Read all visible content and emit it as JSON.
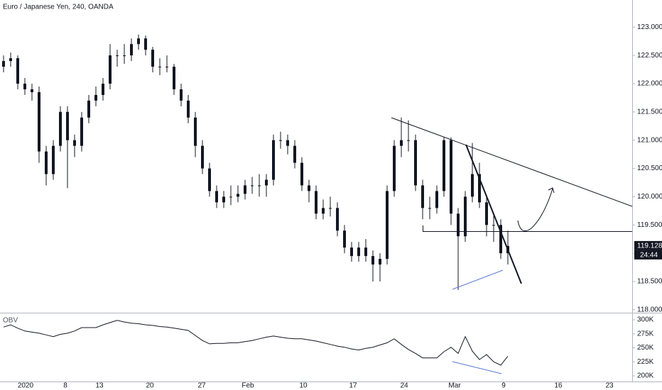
{
  "chart_data": [
    {
      "type": "candlestick",
      "title": "Euro / Japanese Yen, 240, OANDA",
      "color": "#131722",
      "countdown": "24:44",
      "x": [
        0,
        1,
        2,
        3,
        4,
        5,
        6,
        7,
        8,
        9,
        10,
        11,
        12,
        13,
        14,
        15,
        16,
        17,
        18,
        19,
        20,
        21,
        22,
        23,
        24,
        25,
        26,
        27,
        28,
        29,
        30,
        31,
        32,
        33,
        34,
        35,
        36,
        37,
        38,
        39,
        40,
        41,
        42,
        43,
        44,
        45,
        46,
        47,
        48,
        49,
        50,
        51,
        52,
        53,
        54,
        55,
        56,
        57,
        58,
        59,
        60,
        61,
        62,
        63,
        64,
        65,
        66,
        67,
        68,
        69,
        70,
        71
      ],
      "open": [
        122.3,
        122.4,
        122.45,
        122.0,
        121.9,
        121.85,
        120.8,
        120.4,
        120.9,
        121.5,
        121.0,
        120.9,
        121.4,
        121.7,
        121.8,
        122.0,
        122.5,
        122.5,
        122.5,
        122.7,
        122.8,
        122.6,
        122.3,
        122.3,
        122.3,
        121.9,
        121.7,
        121.4,
        120.9,
        120.5,
        120.1,
        119.9,
        120.0,
        120.0,
        120.05,
        120.2,
        120.2,
        120.2,
        120.3,
        121.0,
        121.0,
        120.9,
        120.6,
        120.2,
        120.1,
        119.7,
        119.8,
        119.8,
        119.4,
        119.1,
        118.95,
        119.1,
        118.95,
        118.8,
        118.9,
        120.1,
        120.9,
        121.0,
        121.0,
        120.2,
        119.8,
        119.8,
        120.1,
        121.0,
        119.7,
        119.3,
        120.0,
        120.4,
        119.9,
        119.5,
        119.5,
        119.0
      ],
      "high": [
        122.5,
        122.55,
        122.5,
        122.1,
        122.0,
        121.95,
        120.9,
        121.0,
        121.6,
        121.6,
        121.1,
        121.5,
        121.8,
        121.95,
        122.1,
        122.7,
        122.6,
        122.7,
        122.8,
        122.87,
        122.85,
        122.65,
        122.45,
        122.5,
        122.35,
        122.0,
        121.8,
        121.5,
        121.0,
        120.6,
        120.2,
        120.1,
        120.2,
        120.2,
        120.3,
        120.35,
        120.4,
        120.4,
        121.1,
        121.15,
        121.1,
        121.0,
        120.7,
        120.3,
        120.2,
        119.95,
        120.0,
        119.9,
        119.5,
        119.2,
        119.2,
        119.25,
        119.05,
        119.0,
        120.2,
        121.0,
        121.4,
        121.35,
        121.1,
        120.3,
        120.0,
        120.2,
        121.05,
        121.05,
        119.8,
        120.1,
        120.95,
        120.6,
        120.0,
        119.7,
        119.6,
        119.4
      ],
      "low": [
        122.2,
        122.3,
        121.9,
        121.8,
        121.7,
        120.6,
        120.2,
        120.3,
        120.8,
        120.15,
        120.7,
        120.8,
        121.3,
        121.6,
        121.7,
        121.9,
        122.3,
        122.35,
        122.4,
        122.6,
        122.5,
        122.2,
        122.15,
        122.2,
        121.8,
        121.6,
        121.3,
        120.7,
        120.4,
        120.0,
        119.8,
        119.8,
        119.85,
        119.9,
        119.95,
        120.05,
        120.0,
        120.0,
        120.2,
        120.85,
        120.75,
        120.5,
        120.1,
        119.9,
        119.6,
        119.6,
        119.65,
        119.3,
        119.0,
        118.85,
        118.85,
        118.85,
        118.5,
        118.5,
        118.8,
        120.0,
        120.7,
        120.8,
        120.1,
        119.6,
        119.6,
        119.7,
        120.0,
        119.5,
        118.35,
        119.2,
        119.9,
        119.8,
        119.3,
        119.2,
        118.9,
        118.8
      ],
      "close": [
        122.4,
        122.45,
        122.0,
        121.9,
        121.85,
        120.8,
        120.4,
        120.9,
        121.5,
        121.0,
        120.9,
        121.4,
        121.7,
        121.8,
        122.0,
        122.5,
        122.5,
        122.5,
        122.7,
        122.8,
        122.6,
        122.3,
        122.3,
        122.3,
        121.9,
        121.7,
        121.4,
        120.9,
        120.5,
        120.1,
        119.9,
        120.0,
        120.0,
        120.05,
        120.2,
        120.2,
        120.2,
        120.3,
        121.0,
        121.0,
        120.9,
        120.6,
        120.2,
        120.1,
        119.7,
        119.8,
        119.8,
        119.4,
        119.1,
        118.95,
        119.1,
        118.95,
        118.8,
        118.9,
        120.1,
        120.9,
        121.0,
        121.0,
        120.2,
        119.8,
        119.8,
        120.1,
        121.0,
        119.7,
        119.3,
        120.0,
        120.4,
        119.9,
        119.5,
        119.5,
        119.0,
        119.128
      ],
      "xlim": [
        -0.5,
        88.5
      ],
      "xticks": [
        {
          "value": 3.1,
          "label": "2020"
        },
        {
          "value": 8.7,
          "label": "8"
        },
        {
          "value": 13.5,
          "label": "13"
        },
        {
          "value": 20.6,
          "label": "20"
        },
        {
          "value": 27.9,
          "label": "27"
        },
        {
          "value": 34.4,
          "label": "Feb"
        },
        {
          "value": 42.2,
          "label": "10"
        },
        {
          "value": 49.2,
          "label": "17"
        },
        {
          "value": 56.4,
          "label": "24"
        },
        {
          "value": 63.5,
          "label": "Mar"
        },
        {
          "value": 70.4,
          "label": "9"
        },
        {
          "value": 78.1,
          "label": "16"
        },
        {
          "value": 85.3,
          "label": "23"
        }
      ],
      "ylim": [
        117.96,
        123.48
      ],
      "yticks": [
        {
          "value": 118,
          "label": "118.000"
        },
        {
          "value": 118.5,
          "label": "118.500"
        },
        {
          "value": 119,
          "label": "119.000"
        },
        {
          "value": 119.5,
          "label": "119.500"
        },
        {
          "value": 120,
          "label": "120.000"
        },
        {
          "value": 120.5,
          "label": "120.500"
        },
        {
          "value": 121,
          "label": "121.000"
        },
        {
          "value": 121.5,
          "label": "121.500"
        },
        {
          "value": 122,
          "label": "122.000"
        },
        {
          "value": 122.5,
          "label": "122.500"
        },
        {
          "value": 123,
          "label": "123.000"
        }
      ]
    },
    {
      "type": "line",
      "title": "OBV",
      "color": "#131722",
      "x": [
        0,
        1,
        2,
        3,
        4,
        5,
        6,
        7,
        8,
        9,
        10,
        11,
        12,
        13,
        14,
        15,
        16,
        17,
        18,
        19,
        20,
        21,
        22,
        23,
        24,
        25,
        26,
        27,
        28,
        29,
        30,
        31,
        32,
        33,
        34,
        35,
        36,
        37,
        38,
        39,
        40,
        41,
        42,
        43,
        44,
        45,
        46,
        47,
        48,
        49,
        50,
        51,
        52,
        53,
        54,
        55,
        56,
        57,
        58,
        59,
        60,
        61,
        62,
        63,
        64,
        65,
        66,
        67,
        68,
        69,
        70,
        71
      ],
      "values": [
        287000,
        291000,
        285000,
        280000,
        278000,
        276000,
        273000,
        270000,
        274000,
        276000,
        280000,
        286000,
        286000,
        286000,
        291000,
        295000,
        299000,
        296000,
        294000,
        293000,
        291000,
        290000,
        288000,
        287000,
        285000,
        283000,
        281000,
        272000,
        263000,
        257000,
        258000,
        258000,
        259000,
        259000,
        261000,
        263000,
        266000,
        269000,
        271000,
        269000,
        267000,
        266000,
        266000,
        264000,
        262000,
        259000,
        256000,
        253000,
        251000,
        248000,
        246000,
        249000,
        251000,
        255000,
        259000,
        266000,
        256000,
        247000,
        240000,
        232000,
        232000,
        232000,
        243000,
        251000,
        240000,
        270000,
        244000,
        229000,
        238000,
        225000,
        219000,
        235000
      ],
      "ylim": [
        187300,
        310100
      ],
      "yticks": [
        {
          "value": 300000,
          "label": "300K"
        },
        {
          "value": 275000,
          "label": "275K"
        },
        {
          "value": 250000,
          "label": "250K"
        },
        {
          "value": 225000,
          "label": "225K"
        },
        {
          "value": 200000,
          "label": "200K"
        }
      ]
    }
  ]
}
